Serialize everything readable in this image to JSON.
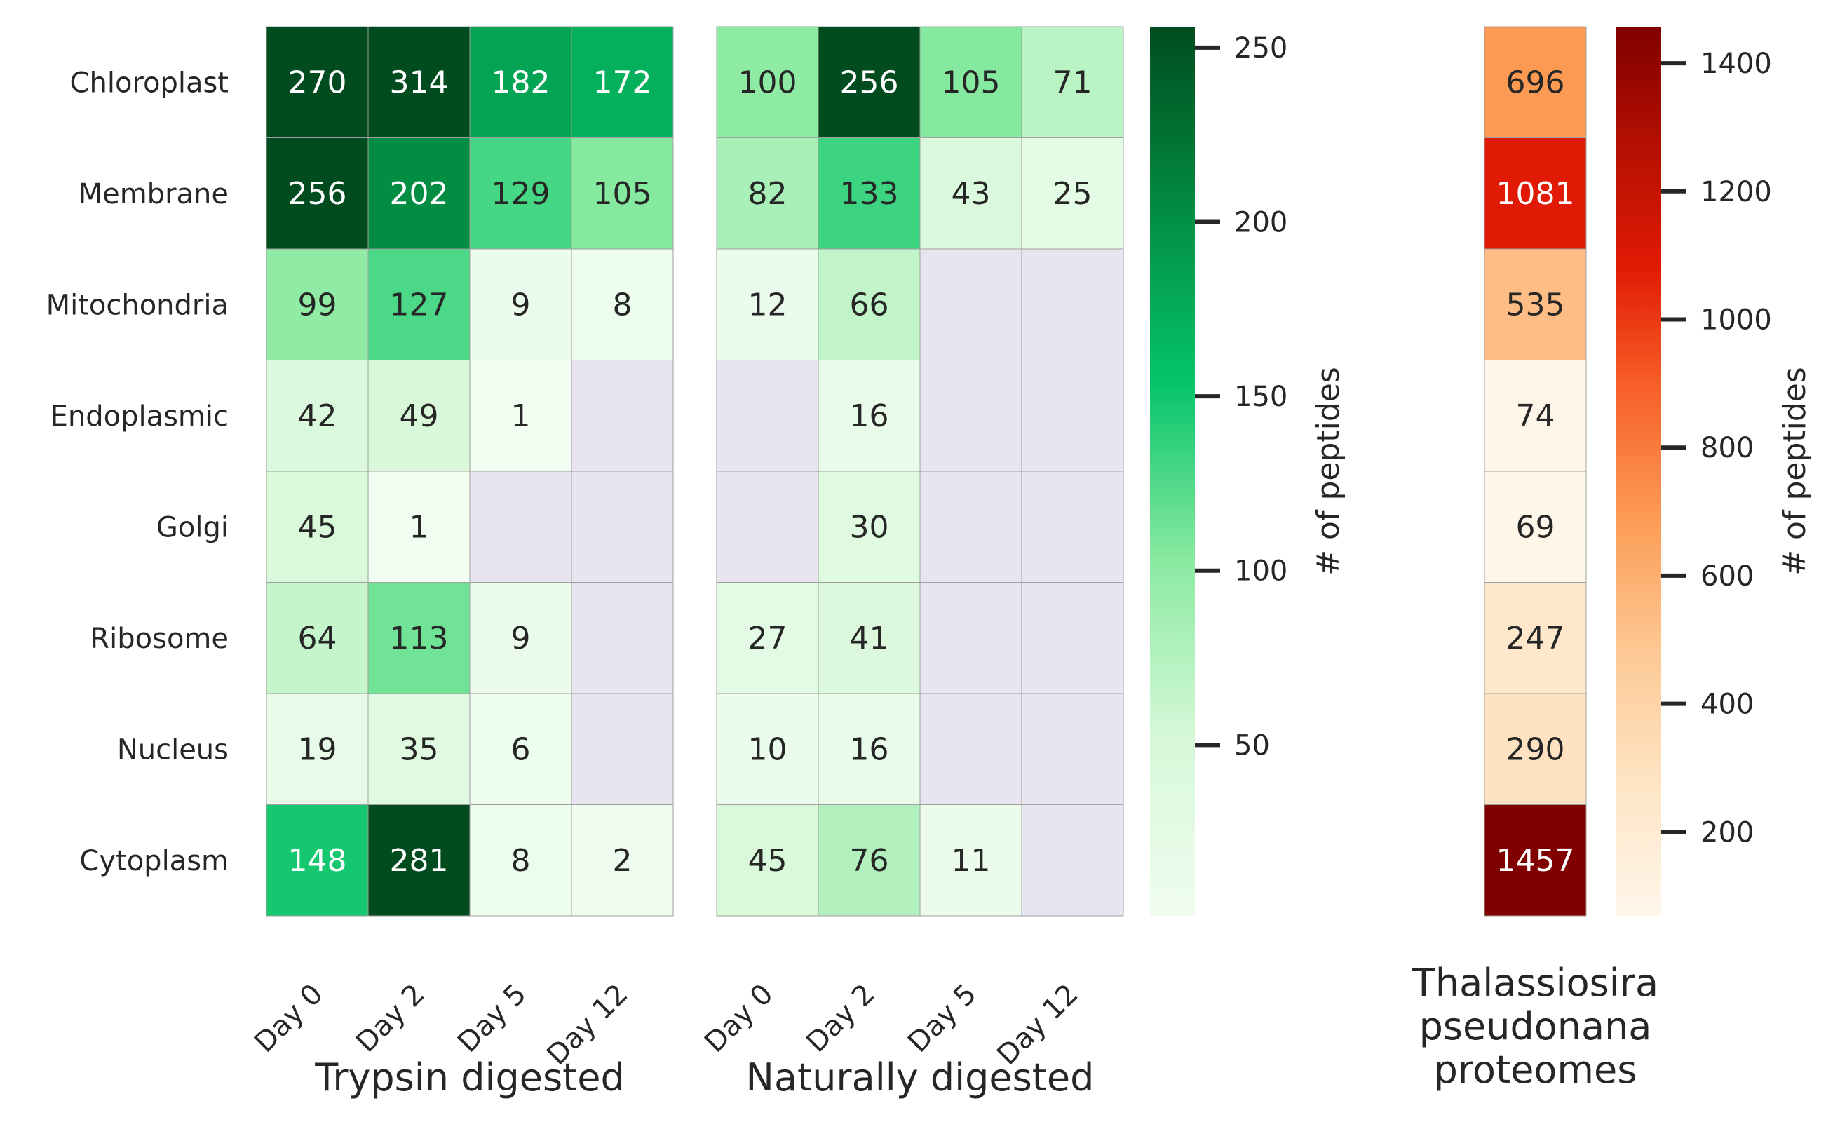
{
  "chart_data": [
    {
      "type": "heatmap",
      "xlabel": "Trypsin digested",
      "columns": [
        "Day 0",
        "Day 2",
        "Day 5",
        "Day 12"
      ],
      "rows": [
        "Chloroplast",
        "Membrane",
        "Mitochondria",
        "Endoplasmic ",
        "Golgi",
        "Ribosome",
        "Nucleus",
        "Cytoplasm"
      ],
      "values": [
        [
          270,
          314,
          182,
          172
        ],
        [
          256,
          202,
          129,
          105
        ],
        [
          99,
          127,
          9,
          8
        ],
        [
          42,
          49,
          1,
          null
        ],
        [
          45,
          1,
          null,
          null
        ],
        [
          64,
          113,
          9,
          null
        ],
        [
          19,
          35,
          6,
          null
        ],
        [
          148,
          281,
          8,
          2
        ]
      ],
      "colormap": "Greens",
      "vmin": 1,
      "vmax": 256
    },
    {
      "type": "heatmap",
      "xlabel": "Naturally digested",
      "columns": [
        "Day 0",
        "Day 2",
        "Day 5",
        "Day 12"
      ],
      "rows": [
        "Chloroplast",
        "Membrane",
        "Mitochondria",
        "Endoplasmic ",
        "Golgi",
        "Ribosome",
        "Nucleus",
        "Cytoplasm"
      ],
      "values": [
        [
          100,
          256,
          105,
          71
        ],
        [
          82,
          133,
          43,
          25
        ],
        [
          12,
          66,
          null,
          null
        ],
        [
          null,
          16,
          null,
          null
        ],
        [
          null,
          30,
          null,
          null
        ],
        [
          27,
          41,
          null,
          null
        ],
        [
          10,
          16,
          null,
          null
        ],
        [
          45,
          76,
          11,
          null
        ]
      ],
      "colormap": "Greens",
      "vmin": 1,
      "vmax": 256,
      "colorbar": {
        "label": "# of peptides",
        "ticks": [
          50,
          100,
          150,
          200,
          250
        ]
      }
    },
    {
      "type": "heatmap",
      "xlabel": "Thalassiosira pseudonana proteomes",
      "xlabel_lines": [
        "Thalassiosira",
        "pseudonana",
        "proteomes"
      ],
      "rows": [
        "Chloroplast",
        "Membrane",
        "Mitochondria",
        "Endoplasmic ",
        "Golgi",
        "Ribosome",
        "Nucleus",
        "Cytoplasm"
      ],
      "values": [
        696,
        1081,
        535,
        74,
        69,
        247,
        290,
        1457
      ],
      "colormap": "OrRd",
      "vmin": 69,
      "vmax": 1457,
      "colorbar": {
        "label": "# of peptides",
        "ticks": [
          200,
          400,
          600,
          800,
          1000,
          1200,
          1400
        ]
      }
    }
  ],
  "colors": {
    "missing_cell": "#e9e5f0",
    "cell_border": "#a0a0a0",
    "text_dark": "#262626",
    "text_light": "#ffffff"
  }
}
